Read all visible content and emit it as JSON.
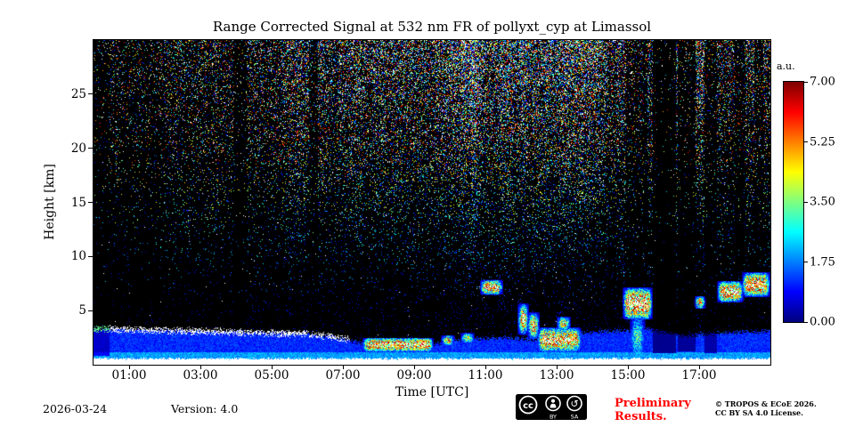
{
  "title": "Range Corrected Signal at 532 nm FR of pollyxt_cyp at Limassol",
  "axes": {
    "xlabel": "Time [UTC]",
    "ylabel": "Height [km]",
    "x_tick_labels": [
      "01:00",
      "03:00",
      "05:00",
      "07:00",
      "09:00",
      "11:00",
      "13:00",
      "15:00",
      "17:00"
    ],
    "y_tick_labels": [
      "5",
      "10",
      "15",
      "20",
      "25"
    ]
  },
  "colorbar": {
    "label": "a.u.",
    "max": 7,
    "tick_labels": [
      "7.00",
      "5.25",
      "3.50",
      "1.75",
      "0.00"
    ],
    "tick_values": [
      7,
      5.25,
      3.5,
      1.75,
      0
    ]
  },
  "footer": {
    "date": "2026-03-24",
    "version": "Version: 4.0",
    "preliminary_line1": "Preliminary",
    "preliminary_line2": "Results.",
    "preliminary_color": "#ff0000",
    "copyright_line1": "© TROPOS & ECoE 2026.",
    "copyright_line2": "CC BY SA 4.0 License.",
    "cc_badge": {
      "cc": "cc",
      "by": "BY",
      "sa": "SA"
    }
  },
  "chart_data": {
    "type": "heatmap",
    "title": "Range Corrected Signal at 532 nm FR of pollyxt_cyp at Limassol",
    "xlabel": "Time [UTC]",
    "ylabel": "Height [km]",
    "x_range_hours": [
      0,
      19
    ],
    "y_range_km": [
      0,
      30
    ],
    "x_tick_hours": [
      1,
      3,
      5,
      7,
      9,
      11,
      13,
      15,
      17
    ],
    "y_tick_km": [
      5,
      10,
      15,
      20,
      25
    ],
    "colorbar": {
      "label": "a.u.",
      "min": 0,
      "max": 7,
      "ticks": [
        0,
        1.75,
        3.5,
        5.25,
        7
      ],
      "colormap": "jet"
    },
    "boundary_layer": {
      "value_au": 1.0,
      "surface_band_km": 0.45,
      "top_edge_bright_until_hour": 7.2,
      "top_km_points": [
        [
          0,
          3.3
        ],
        [
          2,
          3.15
        ],
        [
          4,
          3.0
        ],
        [
          6,
          2.85
        ],
        [
          7,
          2.4
        ],
        [
          7.8,
          1.8
        ],
        [
          8.6,
          1.6
        ],
        [
          9.5,
          1.9
        ],
        [
          10.5,
          2.4
        ],
        [
          11.5,
          2.5
        ],
        [
          12.5,
          2.3
        ],
        [
          13.5,
          2.9
        ],
        [
          14.5,
          3.1
        ],
        [
          15.5,
          3.3
        ],
        [
          16.5,
          2.7
        ],
        [
          17.5,
          2.9
        ],
        [
          19,
          3.1
        ]
      ]
    },
    "clouds": [
      {
        "t0": 7.6,
        "t1": 9.5,
        "h0": 1.45,
        "h1": 2.25,
        "v": 8.5
      },
      {
        "t0": 9.8,
        "t1": 10.1,
        "h0": 2.0,
        "h1": 2.5,
        "v": 6.0
      },
      {
        "t0": 10.35,
        "t1": 10.65,
        "h0": 2.2,
        "h1": 2.7,
        "v": 6.0
      },
      {
        "t0": 10.9,
        "t1": 11.45,
        "h0": 6.7,
        "h1": 7.6,
        "v": 8.0
      },
      {
        "t0": 11.95,
        "t1": 12.18,
        "h0": 3.0,
        "h1": 5.4,
        "v": 8.5
      },
      {
        "t0": 12.22,
        "t1": 12.48,
        "h0": 2.6,
        "h1": 4.6,
        "v": 8.0
      },
      {
        "t0": 12.5,
        "t1": 13.65,
        "h0": 1.4,
        "h1": 3.2,
        "v": 8.0
      },
      {
        "t0": 13.05,
        "t1": 13.35,
        "h0": 3.4,
        "h1": 4.2,
        "v": 7.0
      },
      {
        "t0": 14.9,
        "t1": 15.65,
        "h0": 4.4,
        "h1": 6.9,
        "v": 9.0
      },
      {
        "t0": 15.1,
        "t1": 15.45,
        "h0": 0.4,
        "h1": 4.6,
        "v": 3.8
      },
      {
        "t0": 16.9,
        "t1": 17.15,
        "h0": 5.4,
        "h1": 6.1,
        "v": 7.5
      },
      {
        "t0": 17.55,
        "t1": 18.2,
        "h0": 6.0,
        "h1": 7.5,
        "v": 8.5
      },
      {
        "t0": 18.25,
        "t1": 18.95,
        "h0": 6.5,
        "h1": 8.3,
        "v": 8.5
      }
    ],
    "dark_columns": [
      {
        "t0": 0.0,
        "t1": 0.45,
        "h_above": 0.8,
        "fade": 0.45
      },
      {
        "t0": 3.95,
        "t1": 4.3,
        "h_above": 3.4,
        "fade": 0.3
      },
      {
        "t0": 6.05,
        "t1": 6.3,
        "h_above": 3.3,
        "fade": 0.35
      },
      {
        "t0": 14.95,
        "t1": 15.55,
        "h_above": 7.2,
        "fade": 0.35
      },
      {
        "t0": 15.7,
        "t1": 16.35,
        "h_above": 1.1,
        "fade": 0.1
      },
      {
        "t0": 16.4,
        "t1": 16.9,
        "h_above": 1.2,
        "fade": 0.15
      },
      {
        "t0": 17.15,
        "t1": 17.5,
        "h_above": 1.1,
        "fade": 0.25
      },
      {
        "t0": 18.0,
        "t1": 18.3,
        "h_above": 8.6,
        "fade": 0.35
      },
      {
        "t0": 18.55,
        "t1": 18.8,
        "h_above": 8.6,
        "fade": 0.35
      }
    ],
    "noise": {
      "base_density": 0.02,
      "top_density": 0.62,
      "day_peak_hour": 11.5,
      "day_sigma_hours": 6.5,
      "day_floor": 0.28,
      "residual_above_layer_density": 0.06,
      "white_fraction_top": 0.14
    }
  }
}
